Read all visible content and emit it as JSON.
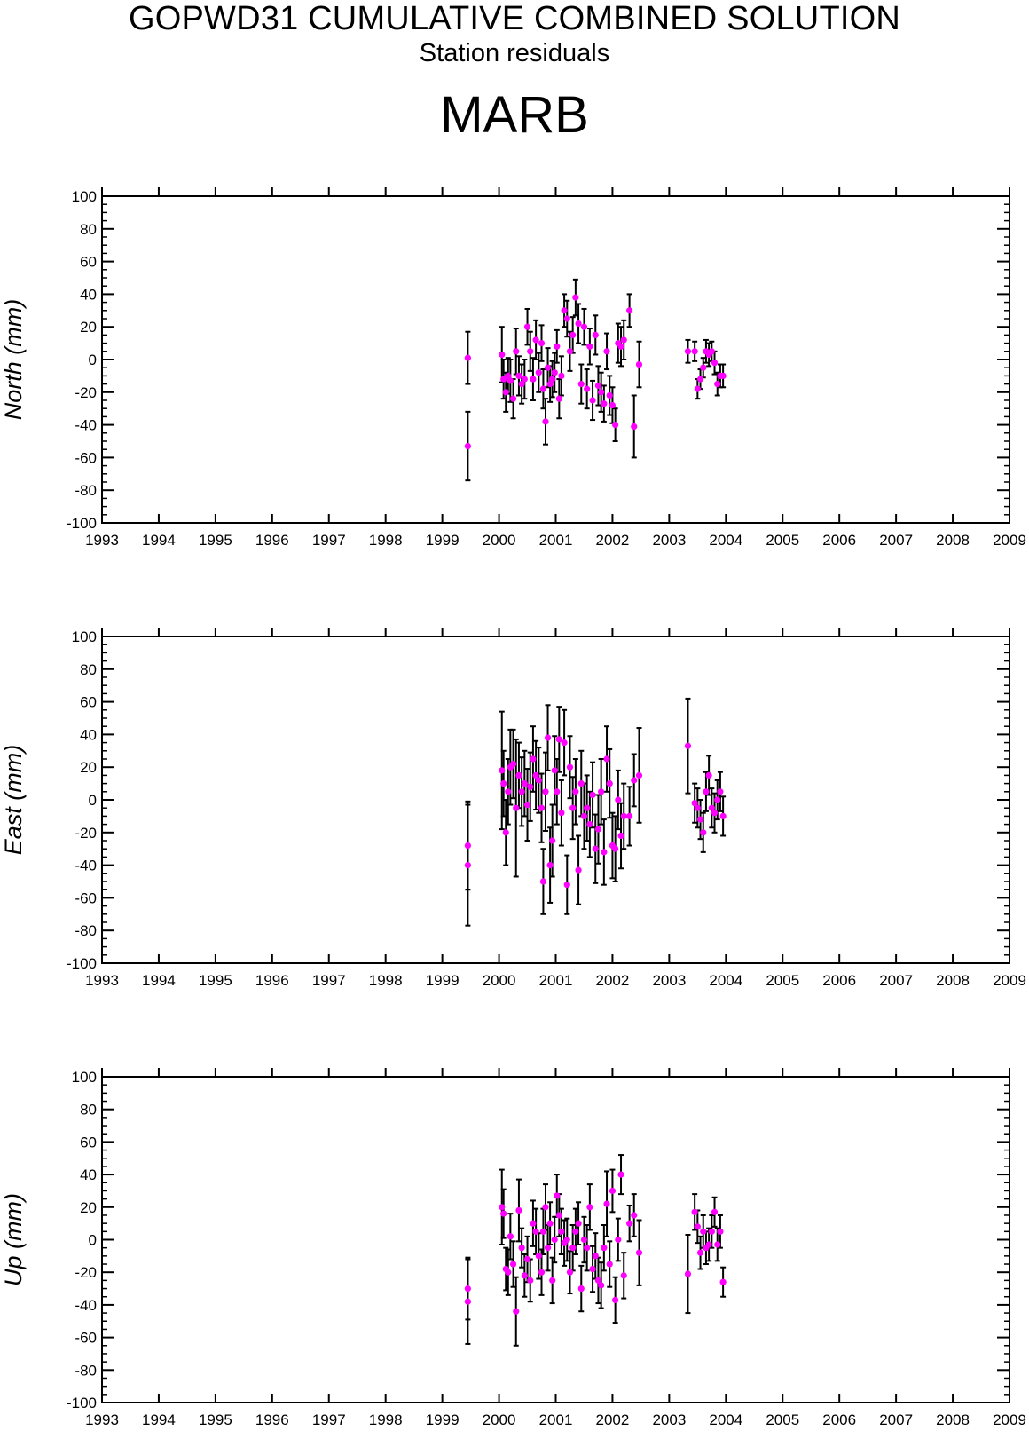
{
  "header": {
    "title": "GOPWD31 CUMULATIVE COMBINED SOLUTION",
    "subtitle": "Station residuals",
    "station": "MARB"
  },
  "colors": {
    "point": "#ff00ff",
    "errorbar": "#000000",
    "axis": "#000000"
  },
  "chart_data": [
    {
      "type": "scatter",
      "title": "",
      "xlabel": "",
      "ylabel": "North (mm)",
      "xlim": [
        1993,
        2009
      ],
      "ylim": [
        -100,
        100
      ],
      "x_ticks": [
        "1993",
        "1994",
        "1995",
        "1996",
        "1997",
        "1998",
        "1999",
        "2000",
        "2001",
        "2002",
        "2003",
        "2004",
        "2005",
        "2006",
        "2007",
        "2008",
        "2009"
      ],
      "y_ticks": [
        "100",
        "80",
        "60",
        "40",
        "20",
        "0",
        "-20",
        "-40",
        "-60",
        "-80",
        "-100"
      ],
      "grid": false,
      "series": [
        {
          "x": [
            1999.45,
            1999.45,
            2000.05,
            2000.08,
            2000.12,
            2000.16,
            2000.2,
            2000.25,
            2000.3,
            2000.35,
            2000.4,
            2000.45,
            2000.5,
            2000.55,
            2000.6,
            2000.65,
            2000.7,
            2000.75,
            2000.78,
            2000.82,
            2000.86,
            2000.9,
            2000.94,
            2000.98,
            2001.02,
            2001.06,
            2001.1,
            2001.15,
            2001.2,
            2001.25,
            2001.3,
            2001.35,
            2001.4,
            2001.45,
            2001.5,
            2001.55,
            2001.6,
            2001.65,
            2001.7,
            2001.75,
            2001.8,
            2001.85,
            2001.9,
            2001.95,
            2002.0,
            2002.05,
            2002.1,
            2002.15,
            2002.2,
            2002.3,
            2002.38,
            2002.47,
            2003.33,
            2003.45,
            2003.5,
            2003.55,
            2003.6,
            2003.65,
            2003.7,
            2003.75,
            2003.8,
            2003.85,
            2003.9,
            2003.95
          ],
          "y": [
            1,
            -53,
            3,
            -12,
            -20,
            -10,
            -13,
            -24,
            5,
            -10,
            -15,
            -12,
            20,
            5,
            -12,
            12,
            -8,
            10,
            -18,
            -38,
            -5,
            -15,
            -12,
            -8,
            8,
            -24,
            -10,
            30,
            25,
            5,
            15,
            38,
            22,
            -15,
            20,
            -18,
            8,
            -25,
            15,
            -16,
            -20,
            -27,
            5,
            -22,
            -28,
            -40,
            10,
            8,
            12,
            30,
            -41,
            -3,
            5,
            5,
            -18,
            -12,
            -5,
            5,
            3,
            5,
            -2,
            -15,
            -10,
            -10
          ],
          "err": [
            16,
            21,
            17,
            12,
            12,
            11,
            13,
            12,
            14,
            12,
            12,
            12,
            11,
            12,
            13,
            12,
            12,
            11,
            12,
            14,
            12,
            11,
            11,
            12,
            10,
            12,
            12,
            10,
            11,
            12,
            11,
            11,
            12,
            12,
            11,
            12,
            11,
            12,
            12,
            12,
            12,
            11,
            11,
            12,
            11,
            10,
            12,
            12,
            12,
            10,
            19,
            14,
            7,
            6,
            6,
            6,
            6,
            7,
            7,
            6,
            7,
            7,
            7,
            7
          ]
        }
      ]
    },
    {
      "type": "scatter",
      "title": "",
      "xlabel": "",
      "ylabel": "East (mm)",
      "xlim": [
        1993,
        2009
      ],
      "ylim": [
        -100,
        100
      ],
      "x_ticks": [
        "1993",
        "1994",
        "1995",
        "1996",
        "1997",
        "1998",
        "1999",
        "2000",
        "2001",
        "2002",
        "2003",
        "2004",
        "2005",
        "2006",
        "2007",
        "2008",
        "2009"
      ],
      "y_ticks": [
        "100",
        "80",
        "60",
        "40",
        "20",
        "0",
        "-20",
        "-40",
        "-60",
        "-80",
        "-100"
      ],
      "grid": false,
      "series": [
        {
          "x": [
            1999.45,
            1999.45,
            2000.05,
            2000.08,
            2000.12,
            2000.16,
            2000.2,
            2000.25,
            2000.3,
            2000.35,
            2000.4,
            2000.45,
            2000.5,
            2000.55,
            2000.6,
            2000.65,
            2000.7,
            2000.75,
            2000.78,
            2000.82,
            2000.86,
            2000.9,
            2000.94,
            2000.98,
            2001.02,
            2001.06,
            2001.1,
            2001.15,
            2001.2,
            2001.25,
            2001.3,
            2001.35,
            2001.4,
            2001.45,
            2001.5,
            2001.55,
            2001.6,
            2001.65,
            2001.7,
            2001.75,
            2001.8,
            2001.85,
            2001.9,
            2001.95,
            2002.0,
            2002.05,
            2002.1,
            2002.15,
            2002.2,
            2002.3,
            2002.38,
            2002.47,
            2003.33,
            2003.45,
            2003.5,
            2003.55,
            2003.6,
            2003.65,
            2003.7,
            2003.75,
            2003.8,
            2003.85,
            2003.9,
            2003.95
          ],
          "y": [
            -28,
            -40,
            18,
            10,
            -20,
            5,
            20,
            22,
            -5,
            15,
            5,
            10,
            -3,
            8,
            25,
            15,
            12,
            -5,
            -50,
            5,
            38,
            -40,
            -25,
            18,
            5,
            37,
            -8,
            35,
            -52,
            20,
            -5,
            5,
            -43,
            10,
            -10,
            -5,
            -15,
            3,
            -30,
            -18,
            5,
            -32,
            25,
            10,
            -28,
            -30,
            0,
            -22,
            -10,
            -10,
            12,
            15,
            33,
            -2,
            -5,
            -12,
            -20,
            5,
            15,
            -5,
            -8,
            0,
            5,
            -10
          ],
          "err": [
            27,
            37,
            36,
            20,
            20,
            20,
            23,
            21,
            42,
            20,
            21,
            20,
            22,
            21,
            20,
            21,
            20,
            21,
            20,
            24,
            20,
            23,
            22,
            21,
            20,
            20,
            20,
            20,
            18,
            19,
            19,
            20,
            21,
            20,
            20,
            20,
            20,
            20,
            21,
            21,
            20,
            20,
            20,
            21,
            20,
            20,
            18,
            20,
            20,
            18,
            16,
            29,
            29,
            12,
            12,
            12,
            12,
            12,
            12,
            12,
            12,
            12,
            12,
            12
          ]
        }
      ]
    },
    {
      "type": "scatter",
      "title": "",
      "xlabel": "",
      "ylabel": "Up (mm)",
      "xlim": [
        1993,
        2009
      ],
      "ylim": [
        -100,
        100
      ],
      "x_ticks": [
        "1993",
        "1994",
        "1995",
        "1996",
        "1997",
        "1998",
        "1999",
        "2000",
        "2001",
        "2002",
        "2003",
        "2004",
        "2005",
        "2006",
        "2007",
        "2008",
        "2009"
      ],
      "y_ticks": [
        "100",
        "80",
        "60",
        "40",
        "20",
        "0",
        "-20",
        "-40",
        "-60",
        "-80",
        "-100"
      ],
      "grid": false,
      "series": [
        {
          "x": [
            1999.45,
            1999.45,
            2000.05,
            2000.08,
            2000.12,
            2000.16,
            2000.2,
            2000.25,
            2000.3,
            2000.35,
            2000.4,
            2000.45,
            2000.5,
            2000.55,
            2000.6,
            2000.65,
            2000.7,
            2000.75,
            2000.78,
            2000.82,
            2000.86,
            2000.9,
            2000.94,
            2000.98,
            2001.02,
            2001.06,
            2001.1,
            2001.15,
            2001.2,
            2001.25,
            2001.3,
            2001.35,
            2001.4,
            2001.45,
            2001.5,
            2001.55,
            2001.6,
            2001.65,
            2001.7,
            2001.75,
            2001.8,
            2001.85,
            2001.9,
            2001.95,
            2002.0,
            2002.05,
            2002.1,
            2002.15,
            2002.2,
            2002.3,
            2002.38,
            2002.47,
            2003.33,
            2003.45,
            2003.5,
            2003.55,
            2003.6,
            2003.65,
            2003.7,
            2003.75,
            2003.8,
            2003.85,
            2003.9,
            2003.95
          ],
          "y": [
            -30,
            -38,
            20,
            16,
            -18,
            -20,
            2,
            -15,
            -44,
            18,
            -5,
            -22,
            -12,
            -25,
            10,
            5,
            -10,
            -20,
            5,
            20,
            -5,
            10,
            -25,
            0,
            27,
            15,
            5,
            -2,
            0,
            -20,
            -5,
            5,
            10,
            -30,
            0,
            -5,
            20,
            -18,
            -10,
            -25,
            -28,
            -5,
            22,
            -15,
            30,
            -37,
            0,
            40,
            -22,
            10,
            15,
            -8,
            -21,
            17,
            8,
            -8,
            5,
            -5,
            -3,
            5,
            17,
            -3,
            5,
            -26
          ],
          "err": [
            19,
            26,
            23,
            15,
            13,
            14,
            14,
            14,
            21,
            19,
            12,
            13,
            14,
            13,
            14,
            14,
            14,
            14,
            14,
            14,
            14,
            13,
            14,
            14,
            13,
            13,
            14,
            14,
            13,
            13,
            14,
            14,
            13,
            14,
            14,
            14,
            14,
            14,
            14,
            14,
            14,
            14,
            20,
            14,
            13,
            14,
            13,
            12,
            14,
            11,
            13,
            20,
            24,
            11,
            10,
            10,
            10,
            10,
            10,
            10,
            9,
            10,
            10,
            9
          ]
        }
      ]
    }
  ]
}
